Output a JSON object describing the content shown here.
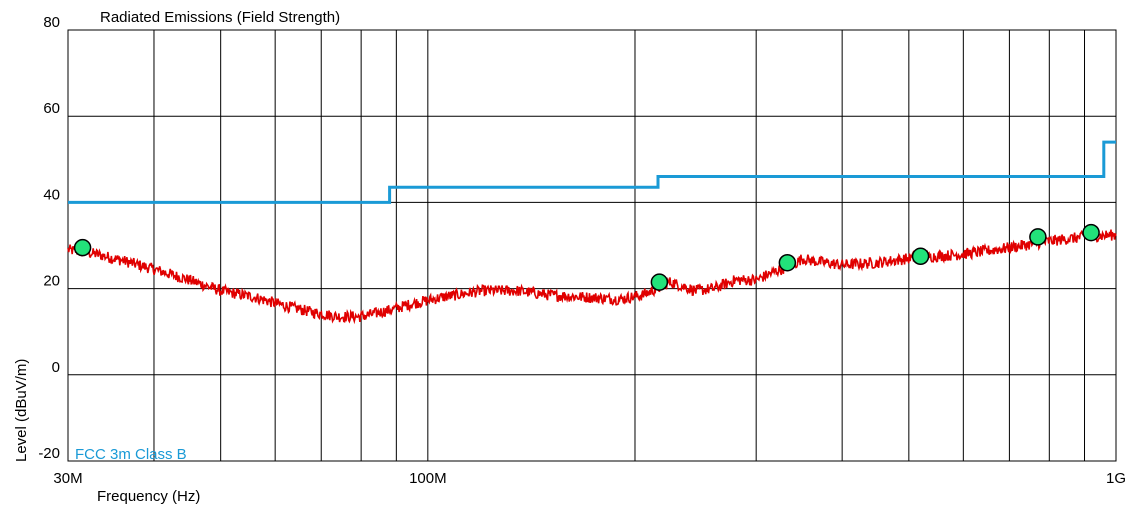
{
  "chart_data": {
    "type": "line",
    "title": "Radiated Emissions (Field Strength)",
    "xlabel": "Frequency (Hz)",
    "ylabel": "Level (dBuV/m)",
    "x_scale": "log",
    "xlim": [
      30000000,
      1000000000
    ],
    "ylim": [
      -20,
      80
    ],
    "x_tick_labels": [
      {
        "value": 30000000,
        "label": "30M"
      },
      {
        "value": 100000000,
        "label": "100M"
      },
      {
        "value": 1000000000,
        "label": "1G"
      }
    ],
    "y_tick_labels": [
      {
        "value": 80,
        "label": "80"
      },
      {
        "value": 60,
        "label": "60"
      },
      {
        "value": 40,
        "label": "40"
      },
      {
        "value": 20,
        "label": "20"
      },
      {
        "value": 0,
        "label": "0"
      },
      {
        "value": -20,
        "label": "-20"
      }
    ],
    "grid": true,
    "legend_position": "bottom-left",
    "colors": {
      "limit": "#1a9ad6",
      "trace": "#e00000",
      "marker_fill": "#22e27a",
      "grid": "#000000"
    },
    "series": [
      {
        "name": "FCC 3m Class B",
        "kind": "step",
        "x": [
          30000000,
          88000000,
          88000000,
          216000000,
          216000000,
          960000000,
          960000000,
          1000000000
        ],
        "y": [
          40,
          40,
          43.5,
          43.5,
          46,
          46,
          54,
          54
        ]
      },
      {
        "kind": "trace",
        "x": [
          30000000,
          33000000,
          36000000,
          40000000,
          45000000,
          50000000,
          56000000,
          62000000,
          68000000,
          74000000,
          80000000,
          88000000,
          95000000,
          105000000,
          120000000,
          135000000,
          150000000,
          170000000,
          190000000,
          205000000,
          215000000,
          225000000,
          235000000,
          245000000,
          260000000,
          280000000,
          300000000,
          320000000,
          340000000,
          350000000,
          360000000,
          400000000,
          450000000,
          500000000,
          600000000,
          700000000,
          800000000,
          900000000,
          1000000000
        ],
        "y": [
          29,
          28,
          26.5,
          24.5,
          22,
          19.5,
          18,
          16,
          14.5,
          13.5,
          13.5,
          15,
          16.5,
          18,
          19.5,
          19.5,
          18.5,
          18,
          17.5,
          18.5,
          20,
          21.5,
          20.5,
          19.5,
          20,
          22,
          22,
          24,
          25.5,
          27,
          26.5,
          25.5,
          26,
          27,
          28,
          29.5,
          31,
          32,
          32.5
        ]
      },
      {
        "kind": "markers",
        "x": [
          31500000,
          217000000,
          333000000,
          520000000,
          770000000,
          920000000
        ],
        "y": [
          29.5,
          21.5,
          26,
          27.5,
          32,
          33
        ]
      }
    ]
  }
}
